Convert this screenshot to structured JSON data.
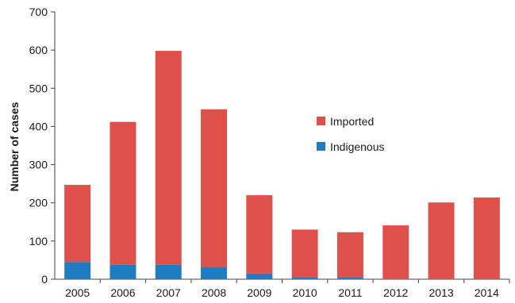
{
  "chart_data": {
    "type": "bar",
    "stacked": true,
    "title": "",
    "xlabel": "",
    "ylabel": "Number  of cases",
    "ylim": [
      0,
      700
    ],
    "yticks": [
      0,
      100,
      200,
      300,
      400,
      500,
      600,
      700
    ],
    "grid": false,
    "legend_position": "center-right",
    "categories": [
      "2005",
      "2006",
      "2007",
      "2008",
      "2009",
      "2010",
      "2011",
      "2012",
      "2013",
      "2014"
    ],
    "series": [
      {
        "name": "Indigenous",
        "color": "#1f7cc0",
        "values": [
          45,
          38,
          38,
          32,
          15,
          5,
          5,
          0,
          0,
          0
        ]
      },
      {
        "name": "Imported",
        "color": "#e0504a",
        "values": [
          202,
          374,
          560,
          413,
          205,
          125,
          118,
          141,
          201,
          214
        ]
      }
    ],
    "legend_order": [
      "Imported",
      "Indigenous"
    ]
  }
}
